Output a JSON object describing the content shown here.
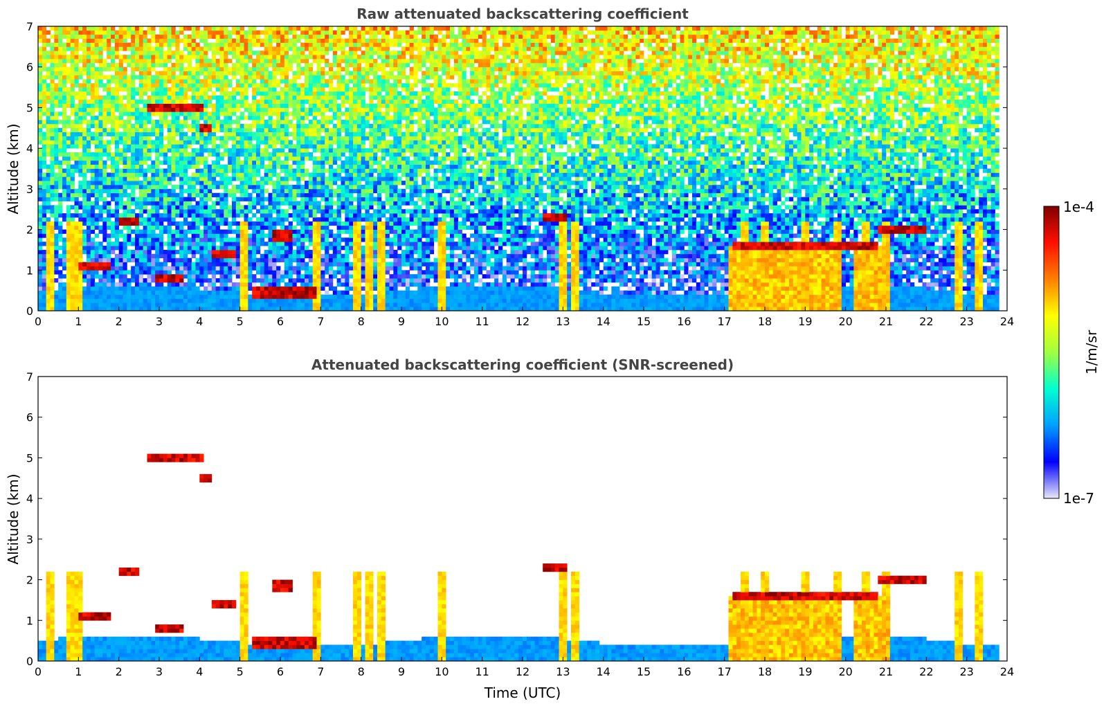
{
  "chart_data": [
    {
      "type": "heatmap",
      "title": "Raw attenuated backscattering coefficient",
      "xlabel": "",
      "ylabel": "Altitude (km)",
      "xlim": [
        0,
        24
      ],
      "ylim": [
        0,
        7
      ],
      "xticks": [
        "0",
        "1",
        "2",
        "3",
        "4",
        "5",
        "6",
        "7",
        "8",
        "9",
        "10",
        "11",
        "12",
        "13",
        "14",
        "15",
        "16",
        "17",
        "18",
        "19",
        "20",
        "21",
        "22",
        "23",
        "24"
      ],
      "yticks": [
        "0",
        "1",
        "2",
        "3",
        "4",
        "5",
        "6",
        "7"
      ],
      "screened": false,
      "features": {
        "boundary_layer_top_km": 0.5,
        "cloud_layers": [
          {
            "t0": 2.7,
            "t1": 4.1,
            "z_km": 5.0
          },
          {
            "t0": 4.0,
            "t1": 4.3,
            "z_km": 4.5
          },
          {
            "t0": 1.0,
            "t1": 1.8,
            "z_km": 1.1
          },
          {
            "t0": 2.0,
            "t1": 2.5,
            "z_km": 2.2
          },
          {
            "t0": 2.9,
            "t1": 3.6,
            "z_km": 0.8
          },
          {
            "t0": 5.3,
            "t1": 6.9,
            "z_km": 0.45
          },
          {
            "t0": 5.8,
            "t1": 6.3,
            "z_km": 1.85
          },
          {
            "t0": 4.3,
            "t1": 4.9,
            "z_km": 1.4
          },
          {
            "t0": 17.2,
            "t1": 20.8,
            "z_km": 1.6
          },
          {
            "t0": 20.8,
            "t1": 22.0,
            "z_km": 2.0
          },
          {
            "t0": 12.5,
            "t1": 13.1,
            "z_km": 2.3
          }
        ],
        "precipitation_shafts_hours": [
          0.3,
          0.8,
          1.0,
          5.1,
          6.9,
          7.9,
          8.2,
          8.5,
          10.0,
          13.0,
          13.3,
          17.5,
          18.0,
          19.0,
          19.8,
          20.5,
          21.0,
          22.8,
          23.3
        ]
      }
    },
    {
      "type": "heatmap",
      "title": "Attenuated backscattering coefficient (SNR-screened)",
      "xlabel": "Time (UTC)",
      "ylabel": "Altitude (km)",
      "xlim": [
        0,
        24
      ],
      "ylim": [
        0,
        7
      ],
      "xticks": [
        "0",
        "1",
        "2",
        "3",
        "4",
        "5",
        "6",
        "7",
        "8",
        "9",
        "10",
        "11",
        "12",
        "13",
        "14",
        "15",
        "16",
        "17",
        "18",
        "19",
        "20",
        "21",
        "22",
        "23",
        "24"
      ],
      "yticks": [
        "0",
        "1",
        "2",
        "3",
        "4",
        "5",
        "6",
        "7"
      ],
      "screened": true
    }
  ],
  "colorbar": {
    "label": "1/m/sr",
    "max_label": "1e-4",
    "min_label": "1e-7",
    "scale": "log",
    "colormap": "jet",
    "colors": [
      "#e8e8f8",
      "#0000ff",
      "#00a0ff",
      "#00ffd0",
      "#a0ff40",
      "#ffff00",
      "#ff8000",
      "#ff1000",
      "#800000"
    ]
  }
}
